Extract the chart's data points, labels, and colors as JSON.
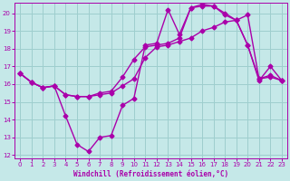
{
  "title": "",
  "xlabel": "Windchill (Refroidissement éolien,°C)",
  "ylabel": "",
  "bg_color": "#c5e8e8",
  "grid_color": "#9ecece",
  "line_color": "#aa00aa",
  "xlim": [
    -0.5,
    23.5
  ],
  "ylim": [
    11.8,
    20.6
  ],
  "yticks": [
    12,
    13,
    14,
    15,
    16,
    17,
    18,
    19,
    20
  ],
  "xticks": [
    0,
    1,
    2,
    3,
    4,
    5,
    6,
    7,
    8,
    9,
    10,
    11,
    12,
    13,
    14,
    15,
    16,
    17,
    18,
    19,
    20,
    21,
    22,
    23
  ],
  "series1_x": [
    0,
    1,
    2,
    3,
    4,
    5,
    6,
    7,
    8,
    9,
    10,
    11,
    12,
    13,
    14,
    15,
    16,
    17,
    18,
    19,
    20,
    21,
    22,
    23
  ],
  "series1_y": [
    16.6,
    16.1,
    15.8,
    15.9,
    15.4,
    15.3,
    15.3,
    15.4,
    15.5,
    15.9,
    16.3,
    17.5,
    18.1,
    18.2,
    18.4,
    18.6,
    19.0,
    19.2,
    19.5,
    19.6,
    19.9,
    16.3,
    16.4,
    16.2
  ],
  "series2_x": [
    0,
    1,
    2,
    3,
    4,
    5,
    6,
    7,
    8,
    9,
    10,
    11,
    12,
    13,
    14,
    15,
    16,
    17,
    18,
    19,
    20,
    21,
    22,
    23
  ],
  "series2_y": [
    16.6,
    16.1,
    15.8,
    15.9,
    15.4,
    15.3,
    15.3,
    15.5,
    15.6,
    16.4,
    17.4,
    18.1,
    18.2,
    18.3,
    18.6,
    20.3,
    20.4,
    20.4,
    20.0,
    19.6,
    18.2,
    16.3,
    16.5,
    16.2
  ],
  "series3_x": [
    0,
    1,
    2,
    3,
    4,
    5,
    6,
    7,
    8,
    9,
    10,
    11,
    12,
    13,
    14,
    15,
    16,
    17,
    18,
    19,
    20,
    21,
    22,
    23
  ],
  "series3_y": [
    16.6,
    16.1,
    15.8,
    15.9,
    14.2,
    12.6,
    12.2,
    13.0,
    13.1,
    14.8,
    15.2,
    18.2,
    18.3,
    20.2,
    18.8,
    20.3,
    20.5,
    20.4,
    19.9,
    19.6,
    18.2,
    16.2,
    17.0,
    16.2
  ],
  "marker": "D",
  "markersize": 2.5,
  "linewidth": 1.0
}
